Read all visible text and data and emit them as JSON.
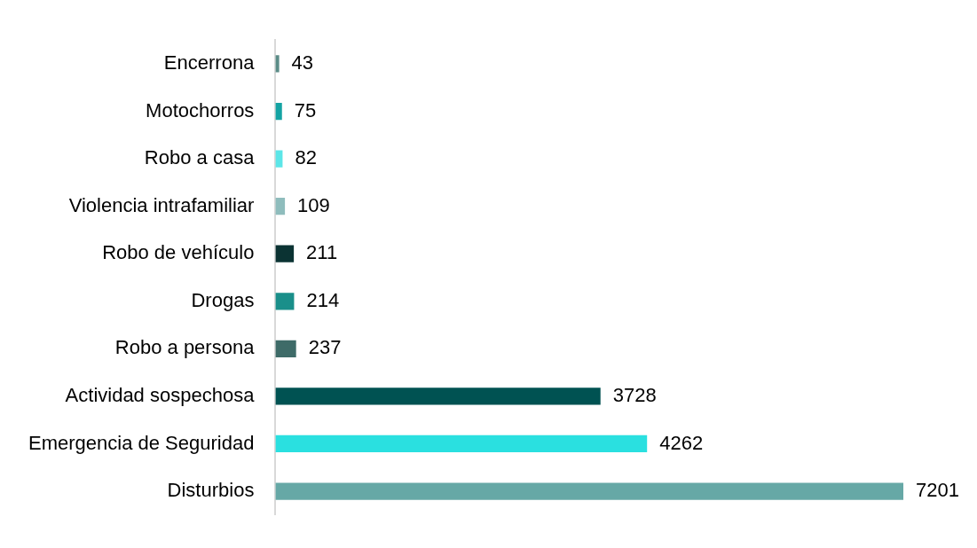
{
  "chart_data": {
    "type": "bar",
    "orientation": "horizontal",
    "data_labels": true,
    "legend": false,
    "categories": [
      "Encerrona",
      "Motochorros",
      "Robo a casa",
      "Violencia intrafamiliar",
      "Robo de vehículo",
      "Drogas",
      "Robo a persona",
      "Actividad sospechosa",
      "Emergencia de Seguridad",
      "Disturbios"
    ],
    "values": [
      43,
      75,
      82,
      109,
      211,
      214,
      237,
      3728,
      4262,
      7201
    ],
    "colors": [
      "#5b8c87",
      "#14a3a3",
      "#5ce6e8",
      "#8fbdbd",
      "#0b3333",
      "#1a8f8a",
      "#3e6b68",
      "#005252",
      "#2ae0e0",
      "#66a8a6"
    ]
  }
}
